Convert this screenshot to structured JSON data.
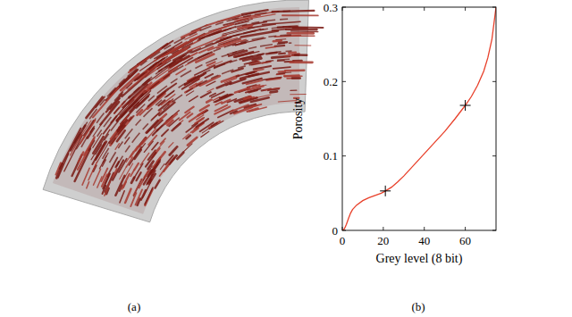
{
  "image": {
    "caption": "(a)"
  },
  "chart_data": {
    "type": "line",
    "caption": "(b)",
    "x_label": "Grey level (8 bit)",
    "y_label": "Porosity",
    "xlim": [
      0,
      75
    ],
    "ylim": [
      0,
      0.3
    ],
    "xticks": [
      0,
      20,
      40,
      60
    ],
    "yticks": [
      0,
      0.1,
      0.2,
      0.3
    ],
    "grid": false,
    "series": [
      {
        "type": "line",
        "color": "#e8402a",
        "line_style": "solid",
        "x": [
          0,
          1,
          2,
          3,
          4,
          5,
          7,
          10,
          13,
          16,
          19,
          21,
          24,
          27,
          30,
          35,
          40,
          45,
          50,
          55,
          60,
          63,
          66,
          69,
          71,
          73,
          75
        ],
        "values": [
          0,
          0.002,
          0.008,
          0.016,
          0.023,
          0.028,
          0.034,
          0.04,
          0.044,
          0.047,
          0.05,
          0.053,
          0.058,
          0.065,
          0.073,
          0.088,
          0.103,
          0.118,
          0.133,
          0.15,
          0.168,
          0.18,
          0.195,
          0.214,
          0.232,
          0.257,
          0.3
        ]
      },
      {
        "type": "scatter",
        "color": "#000000",
        "marker": "plus",
        "x": [
          21,
          60
        ],
        "values": [
          0.053,
          0.168
        ]
      }
    ]
  }
}
